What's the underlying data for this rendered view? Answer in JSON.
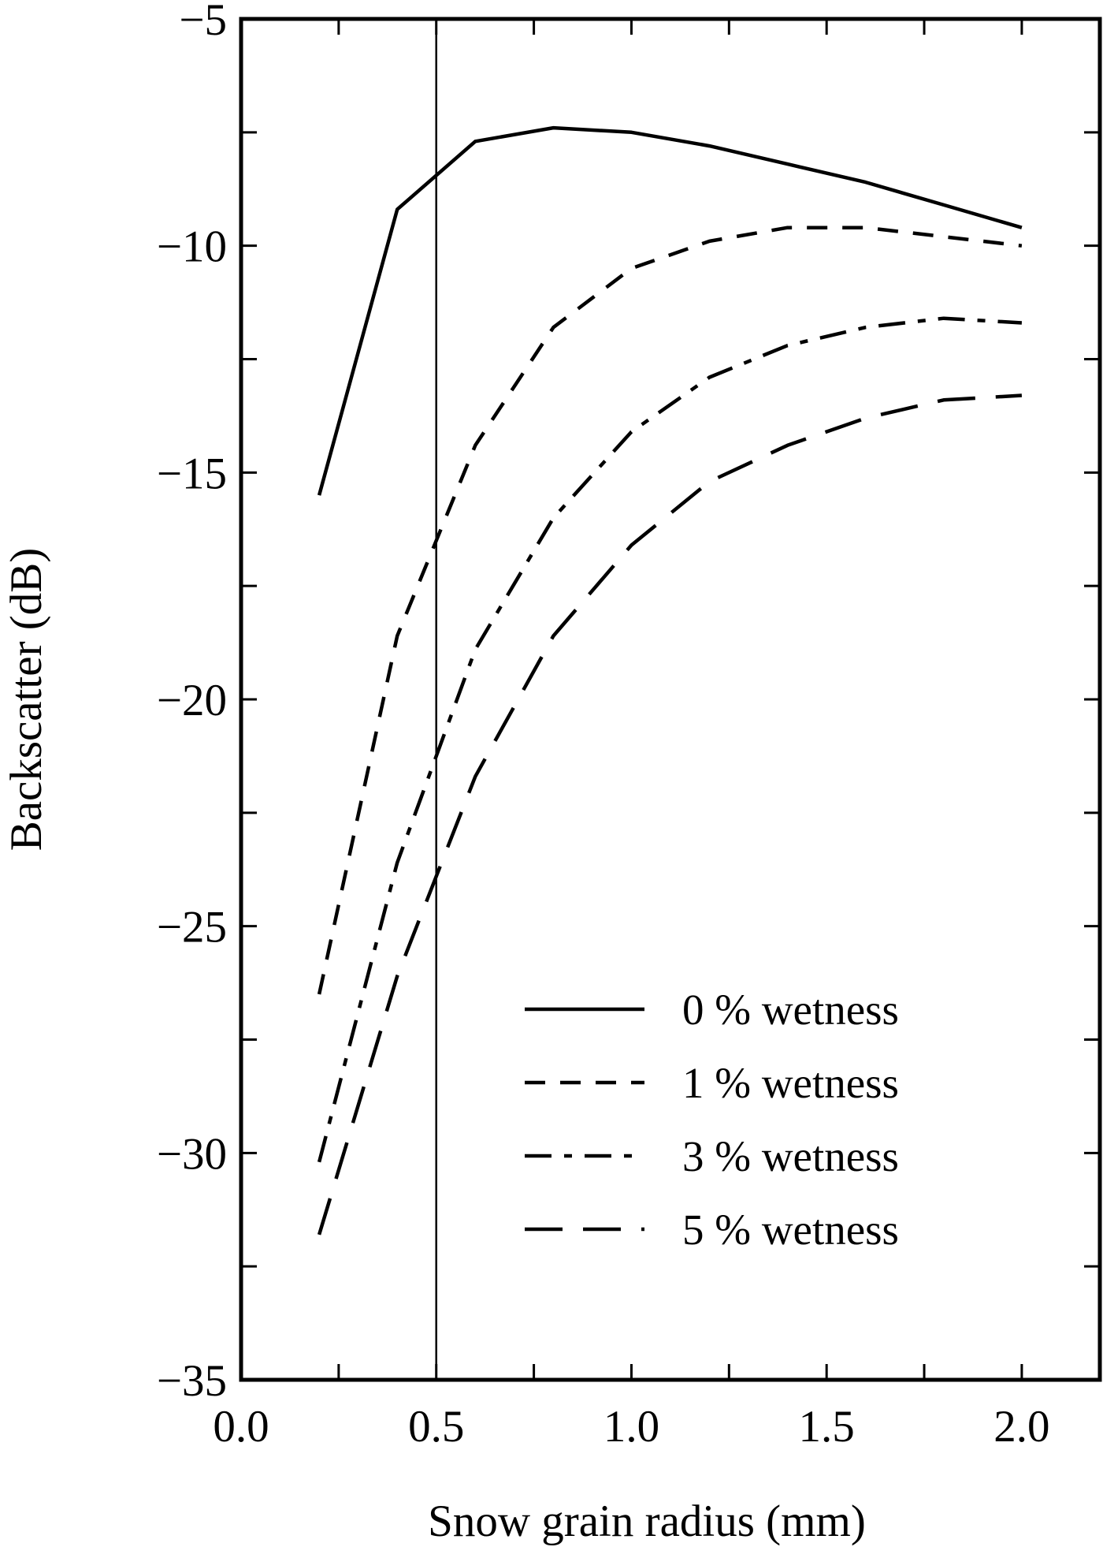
{
  "chart_data": {
    "type": "line",
    "title": "",
    "xlabel": "Snow grain radius (mm)",
    "ylabel": "Backscatter (dB)",
    "xlim": [
      0.0,
      2.2
    ],
    "ylim": [
      -35,
      -5
    ],
    "xticks": [
      0.0,
      0.5,
      1.0,
      1.5,
      2.0
    ],
    "xtick_labels": [
      "0.0",
      "0.5",
      "1.0",
      "1.5",
      "2.0"
    ],
    "xminor": [
      0.25,
      0.75,
      1.25,
      1.75
    ],
    "yticks": [
      -35,
      -30,
      -25,
      -20,
      -15,
      -10,
      -5
    ],
    "ytick_labels": [
      "−35",
      "−30",
      "−25",
      "−20",
      "−15",
      "−10",
      "−5"
    ],
    "yminor": [
      -32.5,
      -27.5,
      -22.5,
      -17.5,
      -12.5,
      -7.5
    ],
    "vline_x": 0.5,
    "grid": false,
    "legend_position": "bottom-right",
    "x": [
      0.2,
      0.4,
      0.6,
      0.8,
      1.0,
      1.2,
      1.4,
      1.6,
      1.8,
      2.0
    ],
    "series": [
      {
        "name": "0 % wetness",
        "dash": "solid",
        "values": [
          -15.5,
          -9.2,
          -7.7,
          -7.4,
          -7.5,
          -7.8,
          -8.2,
          -8.6,
          -9.1,
          -9.6
        ]
      },
      {
        "name": "1 % wetness",
        "dash": "short-dash",
        "values": [
          -26.5,
          -18.6,
          -14.4,
          -11.8,
          -10.5,
          -9.9,
          -9.6,
          -9.6,
          -9.8,
          -10.0
        ]
      },
      {
        "name": "3 % wetness",
        "dash": "dash-dot",
        "values": [
          -30.2,
          -23.6,
          -18.9,
          -16.0,
          -14.1,
          -12.9,
          -12.2,
          -11.8,
          -11.6,
          -11.7
        ]
      },
      {
        "name": "5 % wetness",
        "dash": "long-dash",
        "values": [
          -31.8,
          -26.1,
          -21.7,
          -18.6,
          -16.6,
          -15.2,
          -14.4,
          -13.8,
          -13.4,
          -13.3
        ]
      }
    ]
  }
}
